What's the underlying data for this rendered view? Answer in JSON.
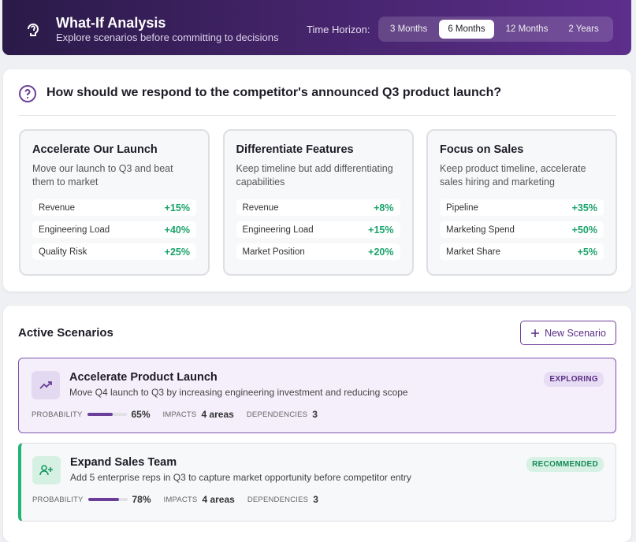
{
  "header": {
    "title": "What-If Analysis",
    "subtitle": "Explore scenarios before committing to decisions",
    "horizon_label": "Time Horizon:",
    "horizons": [
      "3 Months",
      "6 Months",
      "12 Months",
      "2 Years"
    ],
    "selected_horizon": 1
  },
  "question": {
    "text": "How should we respond to the competitor's announced Q3 product launch?",
    "options": [
      {
        "title": "Accelerate Our Launch",
        "description": "Move our launch to Q3 and beat them to market",
        "metrics": [
          {
            "name": "Revenue",
            "change": "+15%"
          },
          {
            "name": "Engineering Load",
            "change": "+40%"
          },
          {
            "name": "Quality Risk",
            "change": "+25%"
          }
        ]
      },
      {
        "title": "Differentiate Features",
        "description": "Keep timeline but add differentiating capabilities",
        "metrics": [
          {
            "name": "Revenue",
            "change": "+8%"
          },
          {
            "name": "Engineering Load",
            "change": "+15%"
          },
          {
            "name": "Market Position",
            "change": "+20%"
          }
        ]
      },
      {
        "title": "Focus on Sales",
        "description": "Keep product timeline, accelerate sales hiring and marketing",
        "metrics": [
          {
            "name": "Pipeline",
            "change": "+35%"
          },
          {
            "name": "Marketing Spend",
            "change": "+50%"
          },
          {
            "name": "Market Share",
            "change": "+5%"
          }
        ]
      }
    ]
  },
  "scenarios": {
    "title": "Active Scenarios",
    "new_button": "New Scenario",
    "items": [
      {
        "title": "Accelerate Product Launch",
        "description": "Move Q4 launch to Q3 by increasing engineering investment and reducing scope",
        "status": "EXPLORING",
        "probability_caption": "PROBABILITY",
        "probability": 65,
        "probability_label": "65%",
        "impacts_caption": "IMPACTS",
        "impacts": "4 areas",
        "dependencies_caption": "DEPENDENCIES",
        "dependencies": 3
      },
      {
        "title": "Expand Sales Team",
        "description": "Add 5 enterprise reps in Q3 to capture market opportunity before competitor entry",
        "status": "RECOMMENDED",
        "probability_caption": "PROBABILITY",
        "probability": 78,
        "probability_label": "78%",
        "impacts_caption": "IMPACTS",
        "impacts": "4 areas",
        "dependencies_caption": "DEPENDENCIES",
        "dependencies": 3
      }
    ]
  }
}
